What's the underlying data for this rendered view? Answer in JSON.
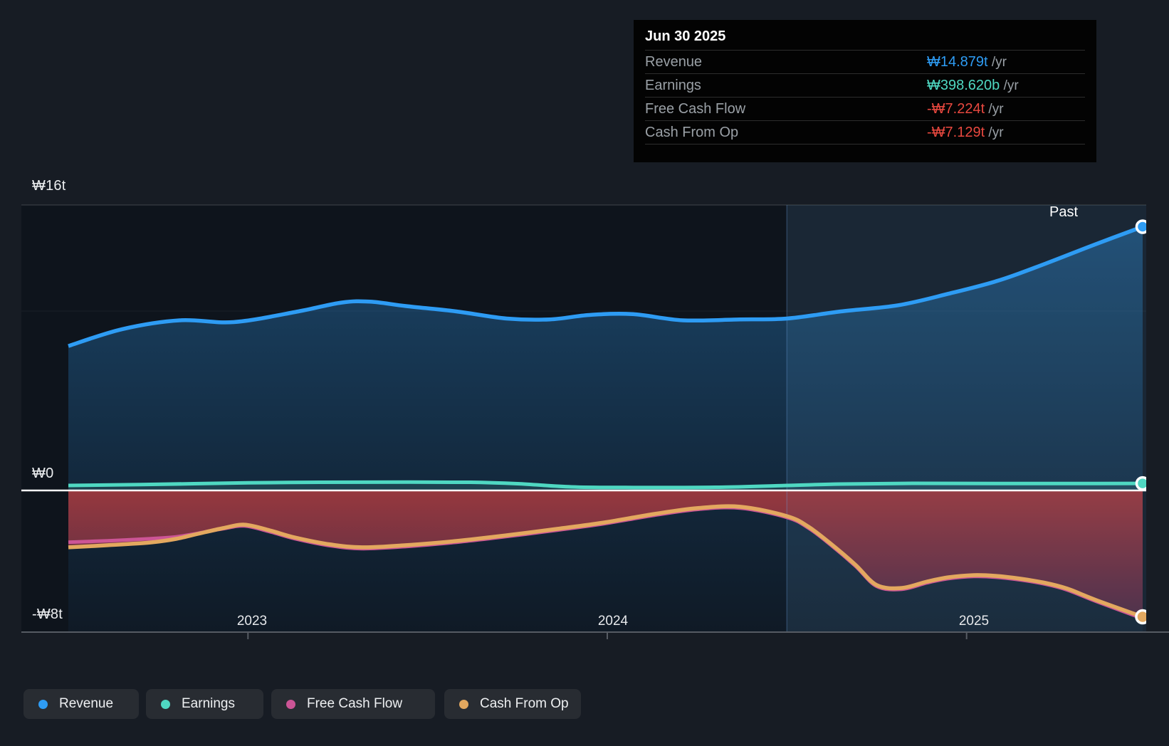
{
  "tooltip": {
    "date": "Jun 30 2025",
    "rows": [
      {
        "label": "Revenue",
        "value": "₩14.879t",
        "suffix": " /yr",
        "color": "#2e9cf4"
      },
      {
        "label": "Earnings",
        "value": "₩398.620b",
        "suffix": " /yr",
        "color": "#4fd8c2"
      },
      {
        "label": "Free Cash Flow",
        "value": "-₩7.224t",
        "suffix": " /yr",
        "color": "#e8483f"
      },
      {
        "label": "Cash From Op",
        "value": "-₩7.129t",
        "suffix": " /yr",
        "color": "#e8483f"
      }
    ]
  },
  "y_axis": {
    "labels": [
      {
        "text": "₩16t",
        "value": 16
      },
      {
        "text": "₩0",
        "value": 0
      },
      {
        "text": "-₩8t",
        "value": -8
      }
    ]
  },
  "x_axis": {
    "labels": [
      {
        "text": "2023",
        "t": 2023
      },
      {
        "text": "2024",
        "t": 2024
      },
      {
        "text": "2025",
        "t": 2025
      }
    ]
  },
  "past_label": "Past",
  "legend": [
    {
      "label": "Revenue",
      "color": "#2e9cf4"
    },
    {
      "label": "Earnings",
      "color": "#4fd8c2"
    },
    {
      "label": "Free Cash Flow",
      "color": "#cc5596"
    },
    {
      "label": "Cash From Op",
      "color": "#e3a85f"
    }
  ],
  "colors": {
    "page_bg": "#171c24",
    "plot_bg": "#0e141c",
    "highlight_bg": "#15212d",
    "zero_line": "#ffffff",
    "axis_line": "#565b63",
    "divider": "rgba(110,160,220,0.30)"
  },
  "chart_data": {
    "type": "area",
    "x_unit": "decimal_year",
    "x_range": [
      2022.5,
      2025.5
    ],
    "ylim": [
      -8.5,
      17
    ],
    "y_unit": "KRW trillions per year",
    "y_gridlines": [
      16,
      0,
      -8
    ],
    "divider_t": 2024.5,
    "legend_position": "bottom",
    "series": [
      {
        "name": "Revenue",
        "color": "#2e9cf4",
        "end_label": "₩14.879t /yr",
        "marker_end": true,
        "points": [
          [
            2022.5,
            8.15
          ],
          [
            2022.65,
            9.1
          ],
          [
            2022.81,
            9.6
          ],
          [
            2022.96,
            9.5
          ],
          [
            2023.14,
            10.1
          ],
          [
            2023.26,
            10.6
          ],
          [
            2023.34,
            10.65
          ],
          [
            2023.44,
            10.4
          ],
          [
            2023.58,
            10.1
          ],
          [
            2023.72,
            9.7
          ],
          [
            2023.84,
            9.65
          ],
          [
            2023.95,
            9.9
          ],
          [
            2024.07,
            9.95
          ],
          [
            2024.21,
            9.6
          ],
          [
            2024.37,
            9.65
          ],
          [
            2024.5,
            9.7
          ],
          [
            2024.65,
            10.1
          ],
          [
            2024.81,
            10.45
          ],
          [
            2024.95,
            11.1
          ],
          [
            2025.09,
            11.85
          ],
          [
            2025.22,
            12.8
          ],
          [
            2025.36,
            13.9
          ],
          [
            2025.49,
            14.879
          ]
        ]
      },
      {
        "name": "Earnings",
        "color": "#4fd8c2",
        "end_label": "₩398.620b /yr",
        "marker_end": true,
        "points": [
          [
            2022.5,
            0.28
          ],
          [
            2022.7,
            0.33
          ],
          [
            2023.0,
            0.43
          ],
          [
            2023.2,
            0.46
          ],
          [
            2023.45,
            0.47
          ],
          [
            2023.62,
            0.46
          ],
          [
            2023.75,
            0.38
          ],
          [
            2023.9,
            0.2
          ],
          [
            2024.05,
            0.17
          ],
          [
            2024.3,
            0.18
          ],
          [
            2024.5,
            0.28
          ],
          [
            2024.65,
            0.36
          ],
          [
            2024.85,
            0.4
          ],
          [
            2025.1,
            0.39
          ],
          [
            2025.3,
            0.39
          ],
          [
            2025.49,
            0.399
          ]
        ]
      },
      {
        "name": "Free Cash Flow",
        "color": "#cc5596",
        "end_label": "-₩7.224t /yr",
        "marker_end": false,
        "points": [
          [
            2022.5,
            -2.92
          ],
          [
            2022.61,
            -2.84
          ],
          [
            2022.73,
            -2.72
          ],
          [
            2022.8,
            -2.62
          ],
          [
            2022.86,
            -2.42
          ],
          [
            2022.93,
            -2.16
          ],
          [
            2022.99,
            -2.0
          ],
          [
            2023.06,
            -2.32
          ],
          [
            2023.13,
            -2.72
          ],
          [
            2023.23,
            -3.12
          ],
          [
            2023.32,
            -3.28
          ],
          [
            2023.44,
            -3.16
          ],
          [
            2023.58,
            -2.92
          ],
          [
            2023.72,
            -2.6
          ],
          [
            2023.86,
            -2.24
          ],
          [
            2023.99,
            -1.88
          ],
          [
            2024.13,
            -1.4
          ],
          [
            2024.25,
            -1.07
          ],
          [
            2024.37,
            -0.99
          ],
          [
            2024.5,
            -1.52
          ],
          [
            2024.56,
            -2.12
          ],
          [
            2024.62,
            -3.04
          ],
          [
            2024.69,
            -4.25
          ],
          [
            2024.75,
            -5.41
          ],
          [
            2024.82,
            -5.57
          ],
          [
            2024.89,
            -5.21
          ],
          [
            2024.95,
            -4.97
          ],
          [
            2025.02,
            -4.85
          ],
          [
            2025.08,
            -4.89
          ],
          [
            2025.15,
            -5.05
          ],
          [
            2025.22,
            -5.29
          ],
          [
            2025.28,
            -5.61
          ],
          [
            2025.36,
            -6.25
          ],
          [
            2025.49,
            -7.224
          ]
        ]
      },
      {
        "name": "Cash From Op",
        "color": "#e3a85f",
        "end_label": "-₩7.129t /yr",
        "marker_end": true,
        "points": [
          [
            2022.5,
            -3.21
          ],
          [
            2022.61,
            -3.09
          ],
          [
            2022.73,
            -2.93
          ],
          [
            2022.8,
            -2.73
          ],
          [
            2022.86,
            -2.45
          ],
          [
            2022.93,
            -2.13
          ],
          [
            2022.99,
            -1.93
          ],
          [
            2023.06,
            -2.25
          ],
          [
            2023.13,
            -2.65
          ],
          [
            2023.23,
            -3.05
          ],
          [
            2023.32,
            -3.21
          ],
          [
            2023.44,
            -3.09
          ],
          [
            2023.58,
            -2.85
          ],
          [
            2023.72,
            -2.53
          ],
          [
            2023.86,
            -2.17
          ],
          [
            2023.99,
            -1.81
          ],
          [
            2024.13,
            -1.33
          ],
          [
            2024.25,
            -1.0
          ],
          [
            2024.37,
            -0.92
          ],
          [
            2024.5,
            -1.45
          ],
          [
            2024.56,
            -2.05
          ],
          [
            2024.62,
            -2.97
          ],
          [
            2024.69,
            -4.18
          ],
          [
            2024.75,
            -5.34
          ],
          [
            2024.82,
            -5.5
          ],
          [
            2024.89,
            -5.14
          ],
          [
            2024.95,
            -4.9
          ],
          [
            2025.02,
            -4.78
          ],
          [
            2025.08,
            -4.82
          ],
          [
            2025.15,
            -4.98
          ],
          [
            2025.22,
            -5.22
          ],
          [
            2025.28,
            -5.54
          ],
          [
            2025.36,
            -6.18
          ],
          [
            2025.49,
            -7.129
          ]
        ]
      }
    ]
  }
}
